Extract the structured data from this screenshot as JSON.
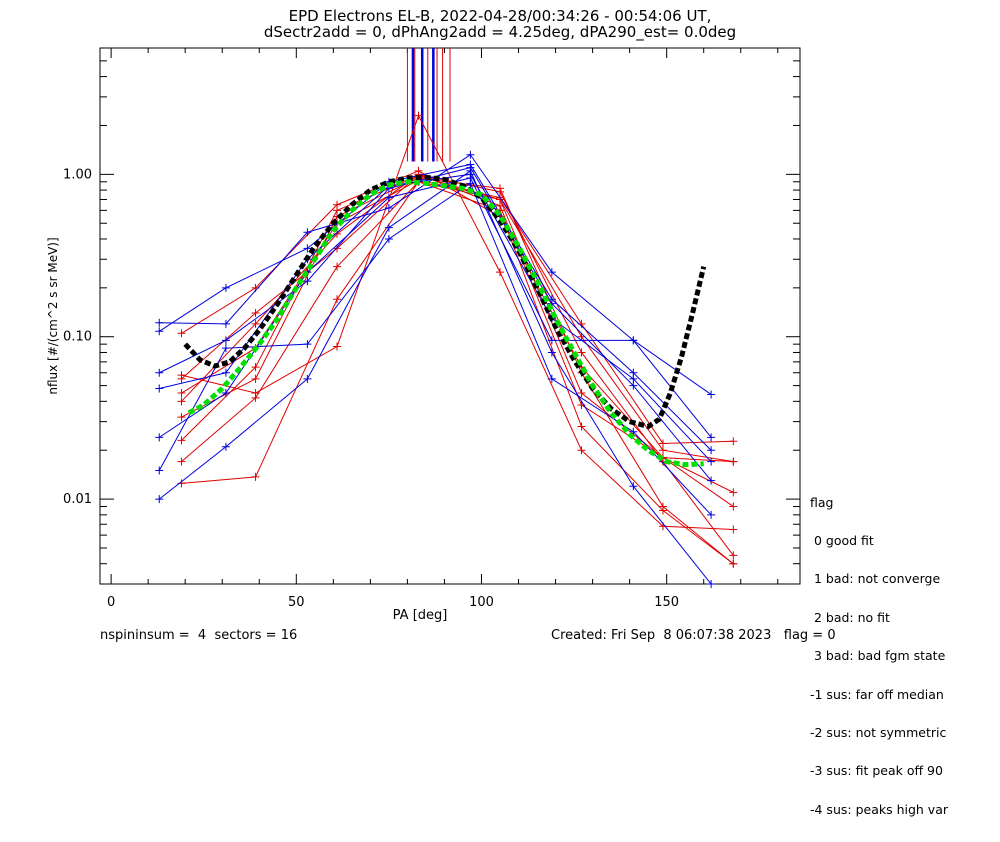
{
  "title_line1": "EPD Electrons EL-B, 2022-04-28/00:34:26 - 00:54:06 UT,",
  "title_line2": "dSectr2add = 0, dPhAng2add = 4.25deg, dPA290_est=    0.0deg",
  "footer": {
    "left": "nspininsum =  4  sectors = 16",
    "right": "Created: Fri Sep  8 06:07:38 2023   flag = 0"
  },
  "legend": {
    "title": "flag",
    "items": [
      " 0 good fit",
      " 1 bad: not converge",
      " 2 bad: no fit",
      " 3 bad: bad fgm state",
      "-1 sus: far off median",
      "-2 sus: not symmetric",
      "-3 sus: fit peak off 90",
      "-4 sus: peaks high var"
    ]
  },
  "colors": {
    "red": "#e00000",
    "blue": "#0000e0",
    "green": "#00e000",
    "black": "#000000"
  },
  "chart_data": {
    "type": "line",
    "xlabel": "PA [deg]",
    "ylabel": "nflux [#/(cm^2 s sr MeV)]",
    "xlim": [
      -3,
      186
    ],
    "ylim": [
      0.003,
      6
    ],
    "yscale": "log",
    "xticks": [
      0,
      50,
      100,
      150
    ],
    "yticks": [
      0.01,
      0.1,
      1.0
    ],
    "ytick_labels": [
      "0.01",
      "0.10",
      "1.00"
    ],
    "series": [
      {
        "color": "red",
        "x": [
          19,
          39,
          61,
          83,
          105,
          127,
          149,
          168
        ],
        "y": [
          0.055,
          0.14,
          0.35,
          1.0,
          0.78,
          0.08,
          0.017,
          0.0045
        ]
      },
      {
        "color": "red",
        "x": [
          19,
          39,
          61,
          83,
          105,
          127,
          149,
          168
        ],
        "y": [
          0.105,
          0.2,
          0.65,
          1.05,
          0.55,
          0.065,
          0.018,
          0.017
        ]
      },
      {
        "color": "red",
        "x": [
          19,
          39,
          61,
          83,
          105,
          127,
          149,
          168
        ],
        "y": [
          0.017,
          0.042,
          0.27,
          0.9,
          0.7,
          0.045,
          0.018,
          0.011
        ]
      },
      {
        "color": "red",
        "x": [
          19,
          39,
          61,
          83,
          105,
          127,
          149,
          168
        ],
        "y": [
          0.045,
          0.085,
          0.5,
          0.92,
          0.72,
          0.12,
          0.022,
          0.0227
        ]
      },
      {
        "color": "red",
        "x": [
          19,
          39,
          61,
          83,
          105,
          127,
          149,
          168
        ],
        "y": [
          0.032,
          0.055,
          0.55,
          0.95,
          0.82,
          0.06,
          0.009,
          0.004
        ]
      },
      {
        "color": "red",
        "x": [
          19,
          39,
          61,
          83,
          105,
          127,
          149,
          168
        ],
        "y": [
          0.023,
          0.065,
          0.6,
          0.98,
          0.7,
          0.1,
          0.02,
          0.017
        ]
      },
      {
        "color": "red",
        "x": [
          19,
          39,
          61,
          83,
          105,
          127,
          149,
          168
        ],
        "y": [
          0.0125,
          0.0137,
          0.17,
          0.9,
          0.6,
          0.028,
          0.0085,
          0.004
        ]
      },
      {
        "color": "red",
        "x": [
          19,
          39,
          61,
          83,
          105,
          127,
          149,
          168
        ],
        "y": [
          0.058,
          0.045,
          0.087,
          2.3,
          0.25,
          0.02,
          0.0068,
          0.0065
        ]
      },
      {
        "color": "red",
        "x": [
          19,
          39,
          61,
          83,
          105,
          127,
          149,
          168
        ],
        "y": [
          0.04,
          0.12,
          0.43,
          1.0,
          0.64,
          0.038,
          0.018,
          0.009
        ]
      },
      {
        "color": "blue",
        "x": [
          13,
          31,
          53,
          75,
          97,
          119,
          141,
          162
        ],
        "y": [
          0.122,
          0.12,
          0.44,
          0.62,
          1.32,
          0.25,
          0.095,
          0.0441
        ]
      },
      {
        "color": "blue",
        "x": [
          13,
          31,
          53,
          75,
          97,
          119,
          141,
          162
        ],
        "y": [
          0.108,
          0.2,
          0.35,
          0.9,
          1.15,
          0.17,
          0.06,
          0.02
        ]
      },
      {
        "color": "blue",
        "x": [
          13,
          31,
          53,
          75,
          97,
          119,
          141,
          162
        ],
        "y": [
          0.048,
          0.06,
          0.3,
          0.85,
          1.0,
          0.13,
          0.055,
          0.017
        ]
      },
      {
        "color": "blue",
        "x": [
          13,
          31,
          53,
          75,
          97,
          119,
          141,
          162
        ],
        "y": [
          0.024,
          0.045,
          0.25,
          0.72,
          0.95,
          0.095,
          0.095,
          0.024
        ]
      },
      {
        "color": "blue",
        "x": [
          13,
          31,
          53,
          75,
          97,
          119,
          141,
          162
        ],
        "y": [
          0.015,
          0.085,
          0.09,
          0.4,
          0.88,
          0.055,
          0.026,
          0.008
        ]
      },
      {
        "color": "blue",
        "x": [
          13,
          31,
          53,
          75,
          97,
          119,
          141,
          162
        ],
        "y": [
          0.01,
          0.021,
          0.055,
          0.47,
          1.05,
          0.08,
          0.012,
          0.003
        ]
      },
      {
        "color": "blue",
        "x": [
          13,
          31,
          53,
          75,
          97,
          119,
          141,
          162
        ],
        "y": [
          0.06,
          0.095,
          0.22,
          0.82,
          1.1,
          0.16,
          0.05,
          0.013
        ]
      }
    ],
    "vertical_lines": [
      {
        "color": "red",
        "x": [
          80,
          82,
          85.5,
          88,
          89.5,
          91.5
        ],
        "y_from": 1.2
      },
      {
        "color": "blue",
        "x": [
          81.5,
          84,
          87
        ],
        "y_from": 1.2
      }
    ],
    "fit_curves": [
      {
        "color": "black",
        "style": "dashed",
        "x": [
          20,
          24,
          28,
          32,
          36,
          40,
          45,
          50,
          55,
          60,
          65,
          70,
          75,
          80,
          85,
          90,
          95,
          100,
          105,
          110,
          115,
          120,
          125,
          130,
          135,
          140,
          145,
          148,
          151,
          154,
          157,
          160
        ],
        "y": [
          0.09,
          0.072,
          0.066,
          0.07,
          0.085,
          0.11,
          0.16,
          0.24,
          0.36,
          0.5,
          0.65,
          0.8,
          0.9,
          0.95,
          0.96,
          0.93,
          0.85,
          0.72,
          0.52,
          0.34,
          0.2,
          0.115,
          0.072,
          0.048,
          0.036,
          0.03,
          0.028,
          0.031,
          0.045,
          0.075,
          0.14,
          0.27
        ]
      },
      {
        "color": "green",
        "style": "dashed",
        "x": [
          21,
          25,
          30,
          35,
          40,
          45,
          50,
          55,
          60,
          65,
          70,
          75,
          80,
          85,
          90,
          95,
          100,
          105,
          110,
          115,
          120,
          125,
          130,
          135,
          140,
          145,
          150,
          155,
          160
        ],
        "y": [
          0.034,
          0.038,
          0.048,
          0.065,
          0.09,
          0.13,
          0.2,
          0.3,
          0.45,
          0.6,
          0.75,
          0.86,
          0.9,
          0.88,
          0.85,
          0.82,
          0.75,
          0.56,
          0.36,
          0.22,
          0.13,
          0.08,
          0.05,
          0.034,
          0.025,
          0.02,
          0.017,
          0.0163,
          0.0165
        ]
      }
    ]
  }
}
